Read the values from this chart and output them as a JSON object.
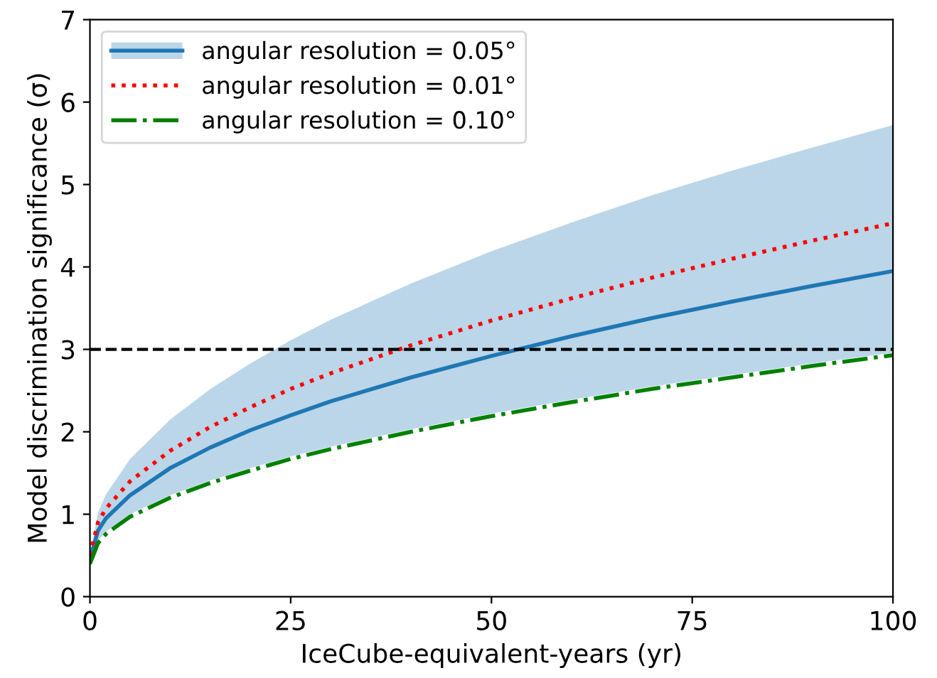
{
  "chart_data": {
    "type": "line",
    "xlabel": "IceCube-equivalent-years (yr)",
    "ylabel": "Model discrimination significance (σ)",
    "x": [
      0,
      1,
      2,
      5,
      10,
      15,
      20,
      25,
      30,
      40,
      50,
      60,
      70,
      80,
      90,
      100
    ],
    "series": [
      {
        "name": "angular resolution = 0.05°",
        "color": "#1f77b4",
        "line_style": "solid",
        "values": [
          0.45,
          0.8,
          0.95,
          1.23,
          1.56,
          1.81,
          2.02,
          2.2,
          2.37,
          2.66,
          2.92,
          3.16,
          3.38,
          3.58,
          3.77,
          3.95
        ],
        "lower": [
          0.4,
          0.68,
          0.79,
          1.0,
          1.23,
          1.41,
          1.56,
          1.7,
          1.82,
          2.03,
          2.22,
          2.39,
          2.55,
          2.69,
          2.83,
          2.96
        ],
        "upper": [
          0.5,
          1.02,
          1.24,
          1.67,
          2.15,
          2.52,
          2.83,
          3.11,
          3.36,
          3.8,
          4.19,
          4.54,
          4.87,
          5.17,
          5.45,
          5.72
        ]
      },
      {
        "name": "angular resolution = 0.01°",
        "color": "#ff0000",
        "line_style": "dotted",
        "values": [
          0.5,
          0.9,
          1.07,
          1.4,
          1.77,
          2.06,
          2.3,
          2.52,
          2.71,
          3.05,
          3.35,
          3.62,
          3.87,
          4.1,
          4.32,
          4.53
        ]
      },
      {
        "name": "angular resolution = 0.10°",
        "color": "#008000",
        "line_style": "dashdot",
        "values": [
          0.4,
          0.65,
          0.76,
          0.97,
          1.2,
          1.38,
          1.53,
          1.67,
          1.79,
          2.0,
          2.19,
          2.36,
          2.52,
          2.66,
          2.8,
          2.93
        ]
      }
    ],
    "ref_lines": [
      {
        "axis": "y",
        "value": 3,
        "color": "#000000",
        "line_style": "dashed"
      }
    ],
    "xlim": [
      0,
      100
    ],
    "xticks": [
      0,
      25,
      50,
      75,
      100
    ],
    "ylim": [
      0,
      7
    ],
    "yticks": [
      0,
      1,
      2,
      3,
      4,
      5,
      6,
      7
    ],
    "grid": false,
    "legend": "top left",
    "marker": "none"
  }
}
